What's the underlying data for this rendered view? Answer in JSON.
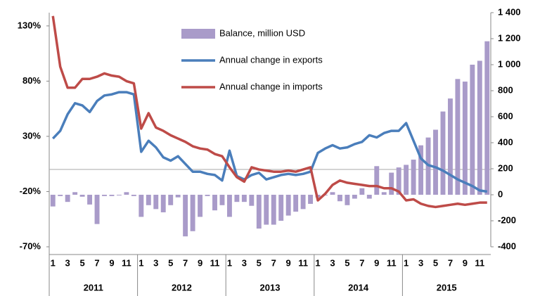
{
  "chart_data": {
    "type": "combo",
    "categories": [
      "1",
      null,
      "3",
      null,
      "5",
      null,
      "7",
      null,
      "9",
      null,
      "11",
      null,
      "1",
      null,
      "3",
      null,
      "5",
      null,
      "7",
      null,
      "9",
      null,
      "11",
      null,
      "1",
      null,
      "3",
      null,
      "5",
      null,
      "7",
      null,
      "9",
      null,
      "11",
      null,
      "1",
      null,
      "3",
      null,
      "5",
      null,
      "7",
      null,
      "9",
      null,
      "11",
      null,
      "1",
      null,
      "3",
      null,
      "5",
      null,
      "7",
      null,
      "9",
      null,
      "11",
      null
    ],
    "years": [
      "2011",
      "2012",
      "2013",
      "2014",
      "2015"
    ],
    "series": [
      {
        "name": "Balance, million USD",
        "type": "bar",
        "axis": "y2",
        "color": "#a99bc9",
        "values": [
          -90,
          -10,
          -55,
          20,
          -15,
          -75,
          -225,
          -10,
          -10,
          -5,
          20,
          -10,
          -170,
          -80,
          -110,
          -135,
          -80,
          -20,
          -320,
          -280,
          -170,
          -10,
          -120,
          -80,
          -170,
          -55,
          -55,
          -85,
          -260,
          -230,
          -230,
          -200,
          -160,
          -130,
          -110,
          -70,
          -20,
          -5,
          20,
          -50,
          -80,
          -30,
          50,
          -30,
          220,
          20,
          170,
          210,
          230,
          270,
          380,
          440,
          500,
          640,
          740,
          890,
          870,
          1000,
          1030,
          1180
        ]
      },
      {
        "name": "Annual change in exports",
        "type": "line",
        "color": "#4a7ebb",
        "values": [
          28,
          35,
          50,
          60,
          58,
          52,
          62,
          67,
          68,
          70,
          70,
          68,
          16,
          26,
          20,
          11,
          8,
          12,
          5,
          -2,
          -2,
          -4,
          -5,
          -10,
          17,
          -6,
          -9,
          -5,
          -3,
          -9,
          -7,
          -5,
          -4,
          -5,
          -4,
          -2,
          15,
          19,
          22,
          19,
          20,
          23,
          25,
          31,
          29,
          33,
          35,
          35,
          42,
          26,
          10,
          4,
          2,
          -1,
          -5,
          -9,
          -12,
          -15,
          -19,
          -20
        ]
      },
      {
        "name": "Annual change in imports",
        "type": "line",
        "color": "#be4b48",
        "values": [
          139,
          93,
          74,
          74,
          82,
          82,
          84,
          87,
          85,
          84,
          80,
          78,
          37,
          51,
          38,
          35,
          31,
          28,
          25,
          21,
          19,
          18,
          14,
          12,
          2,
          -7,
          -11,
          2,
          0,
          -1,
          -2,
          -2,
          -1,
          -2,
          0,
          2,
          -28,
          -22,
          -14,
          -10,
          -12,
          -13,
          -14,
          -15,
          -15,
          -17,
          -17,
          -20,
          -28,
          -27,
          -31,
          -33,
          -34,
          -33,
          -32,
          -31,
          -32,
          -31,
          -30,
          -30
        ]
      }
    ],
    "ylim": [
      -70,
      142
    ],
    "yticks": [
      {
        "value": -70,
        "label": "-70%"
      },
      {
        "value": -20,
        "label": "-20%"
      },
      {
        "value": 30,
        "label": "30%"
      },
      {
        "value": 80,
        "label": "80%"
      },
      {
        "value": 130,
        "label": "130%"
      }
    ],
    "y2lim": [
      -400,
      1400
    ],
    "y2ticks": [
      -400,
      -200,
      0,
      200,
      400,
      600,
      800,
      {
        "value": 1000,
        "label": "1 000"
      },
      {
        "value": 1200,
        "label": "1 200"
      },
      {
        "value": 1400,
        "label": "1 400"
      }
    ],
    "legend": "upper center"
  }
}
